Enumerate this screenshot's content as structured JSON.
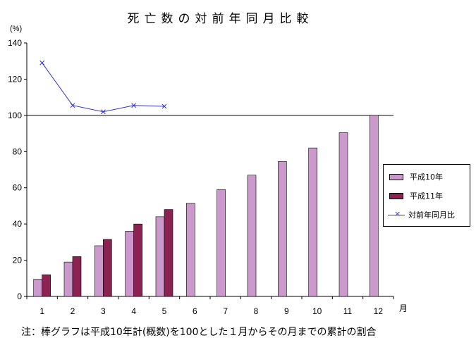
{
  "title": "死亡数の対前年同月比較",
  "note": "注：棒グラフは平成10年計(概数)を100とした１月からその月までの累計の割合",
  "chart_data": {
    "type": "bar",
    "ylabel": "(%)",
    "xlabel": "月",
    "categories": [
      "1",
      "2",
      "3",
      "4",
      "5",
      "6",
      "7",
      "8",
      "9",
      "10",
      "11",
      "12"
    ],
    "ylim": [
      0,
      140
    ],
    "yticks": [
      0,
      20,
      40,
      60,
      80,
      100,
      120,
      140
    ],
    "reference_line": 100,
    "grid": false,
    "legend_position": "right",
    "series": [
      {
        "name": "平成10年",
        "type": "bar",
        "color": "#cc99cc",
        "values": [
          9.5,
          19,
          28,
          36,
          44,
          51.5,
          59,
          67,
          74.5,
          82,
          90.5,
          100
        ]
      },
      {
        "name": "平成11年",
        "type": "bar",
        "color": "#8b2252",
        "values": [
          12,
          22,
          31.5,
          40,
          48,
          null,
          null,
          null,
          null,
          null,
          null,
          null
        ]
      },
      {
        "name": "対前年同月比",
        "type": "line",
        "color": "#3333cc",
        "marker": "x",
        "values": [
          129,
          105.5,
          102,
          105.5,
          105,
          null,
          null,
          null,
          null,
          null,
          null,
          null
        ]
      }
    ]
  }
}
